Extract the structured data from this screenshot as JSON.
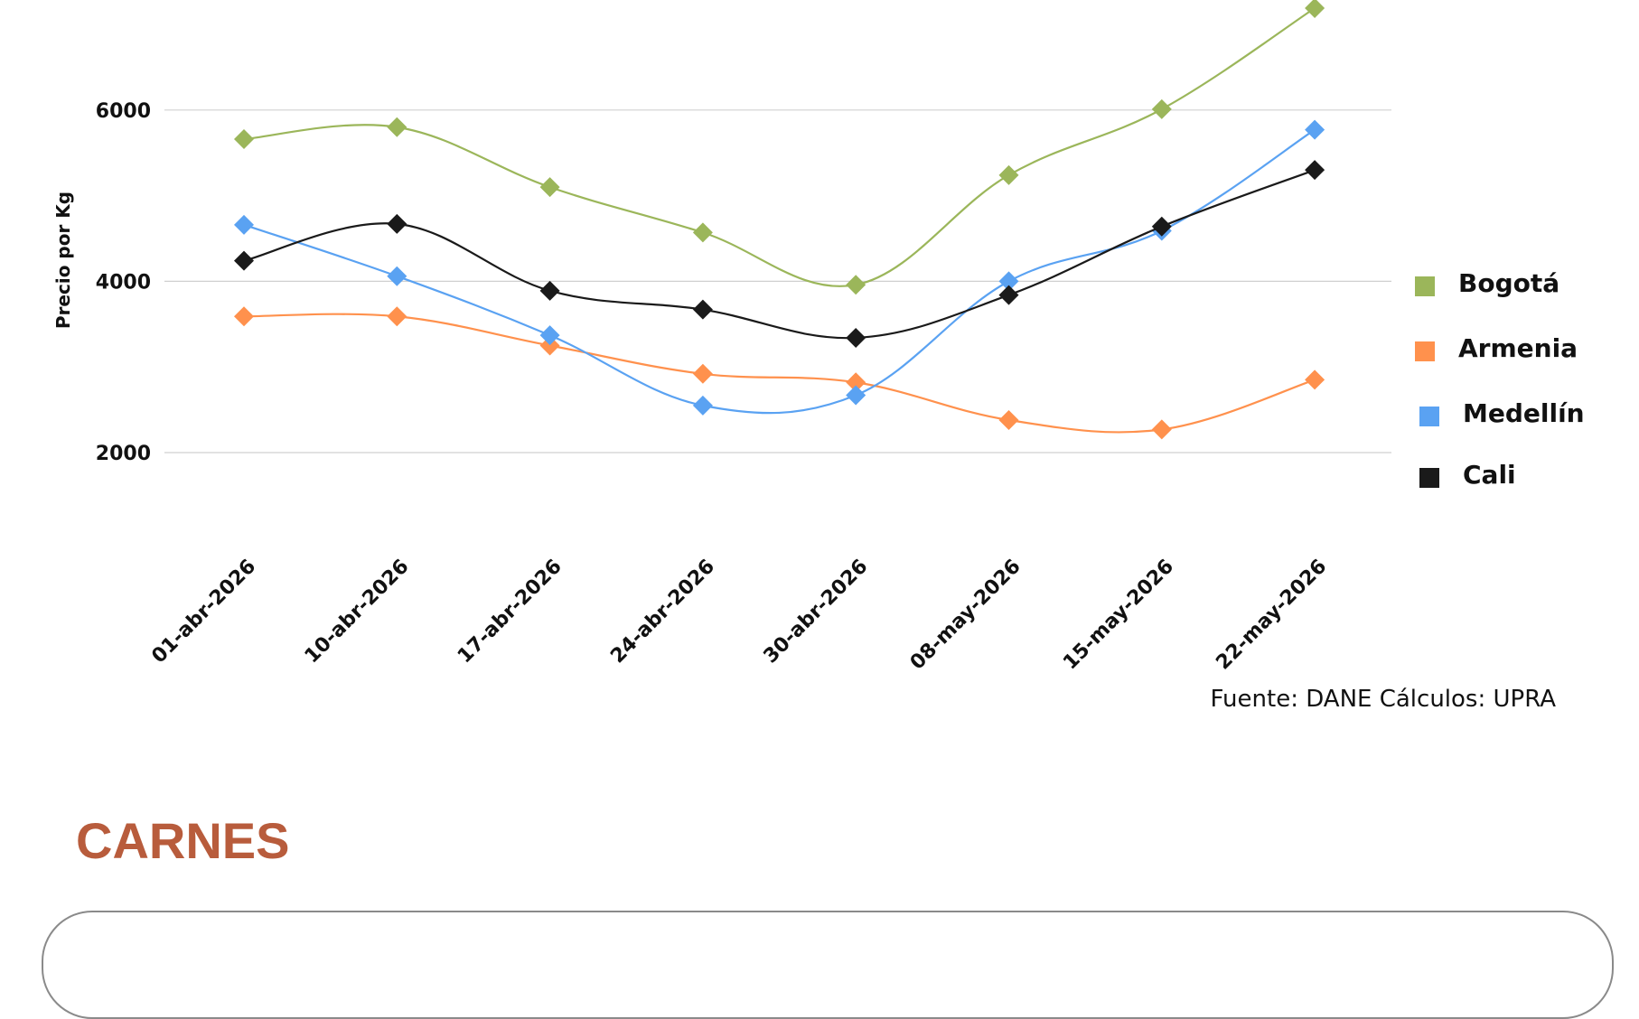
{
  "chart_data": {
    "type": "line",
    "ylabel": "Precio por Kg",
    "yticks": [
      2000,
      4000,
      6000
    ],
    "ylim": [
      1200,
      7200
    ],
    "grid": true,
    "legend_position": "right",
    "categories": [
      "01-abr-2026",
      "10-abr-2026",
      "17-abr-2026",
      "24-abr-2026",
      "30-abr-2026",
      "08-may-2026",
      "15-may-2026",
      "22-may-2026"
    ],
    "series": [
      {
        "name": "Bogotá",
        "color": "#9BB65A",
        "values": [
          5660,
          5800,
          5100,
          4570,
          3960,
          5240,
          6010,
          7190
        ]
      },
      {
        "name": "Armenia",
        "color": "#FF914D",
        "values": [
          3590,
          3590,
          3250,
          2920,
          2820,
          2380,
          2270,
          2850
        ]
      },
      {
        "name": "Medellín",
        "color": "#5AA2F2",
        "values": [
          4660,
          4060,
          3370,
          2550,
          2670,
          4000,
          4590,
          5770
        ]
      },
      {
        "name": "Cali",
        "color": "#1A1A1A",
        "values": [
          4240,
          4670,
          3890,
          3670,
          3340,
          3840,
          4640,
          5300
        ]
      }
    ]
  },
  "source": "Fuente: DANE Cálculos: UPRA",
  "section": {
    "title": "CARNES"
  }
}
